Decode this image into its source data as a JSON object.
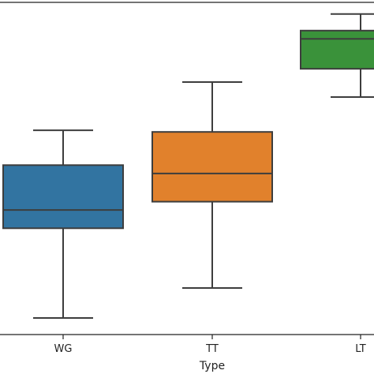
{
  "chart_data": {
    "type": "box",
    "xlabel": "Type",
    "ylabel": "",
    "categories": [
      "WG",
      "TT",
      "LT"
    ],
    "ylim": [
      0,
      100
    ],
    "boxes": [
      {
        "category": "WG",
        "whisker_low": 5,
        "q1": 32,
        "median": 37.5,
        "q3": 51,
        "whisker_high": 61.5,
        "color": "#3274a1"
      },
      {
        "category": "TT",
        "whisker_low": 14,
        "q1": 40,
        "median": 48.5,
        "q3": 61,
        "whisker_high": 76,
        "color": "#e1812c"
      },
      {
        "category": "LT",
        "whisker_low": 71.5,
        "q1": 80,
        "median": 89,
        "q3": 91.5,
        "whisker_high": 96.5,
        "color": "#3a923a"
      }
    ],
    "grid": false,
    "legend": "none"
  }
}
